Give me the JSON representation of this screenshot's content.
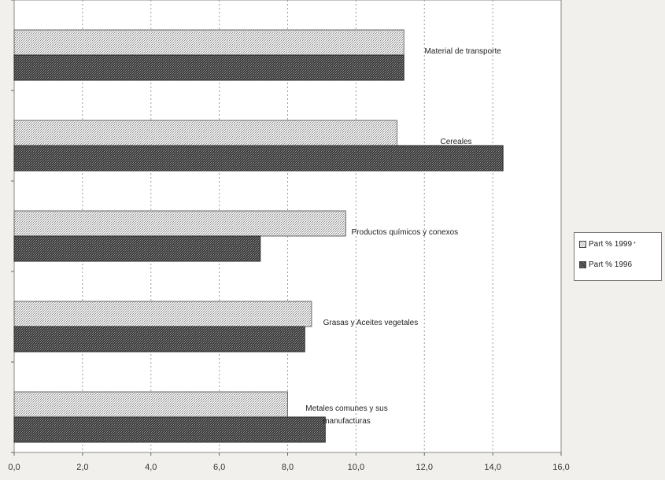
{
  "chart_data": {
    "type": "bar",
    "orientation": "horizontal",
    "categories": [
      "Material de transporte",
      "Cereales",
      "Productos químicos y conexos",
      "Grasas y Aceites vegetales",
      "Metales comunes y sus manufacturas"
    ],
    "category_lines": [
      [
        "Material de transporte"
      ],
      [
        "Cereales"
      ],
      [
        "Productos químicos y conexos"
      ],
      [
        "Grasas y Aceites vegetales"
      ],
      [
        "Metales comunes y sus",
        "manufacturas"
      ]
    ],
    "series": [
      {
        "name": "Part % 1999",
        "values": [
          11.4,
          11.2,
          9.7,
          8.7,
          8.0
        ]
      },
      {
        "name": "Part % 1996",
        "values": [
          11.4,
          14.3,
          7.2,
          8.5,
          9.1
        ]
      }
    ],
    "xlim": [
      0,
      16
    ],
    "xticks": [
      "0,0",
      "2,0",
      "4,0",
      "6,0",
      "8,0",
      "10,0",
      "12,0",
      "14,0",
      "16,0"
    ],
    "grid": true,
    "legend_position": "right",
    "colors": {
      "Part % 1999": "#d9d9d9",
      "Part % 1996": "#3a3a3a"
    }
  },
  "legend": {
    "series_1999": "Part % 1999",
    "series_1999_mark": "*",
    "series_1996": "Part % 1996"
  }
}
